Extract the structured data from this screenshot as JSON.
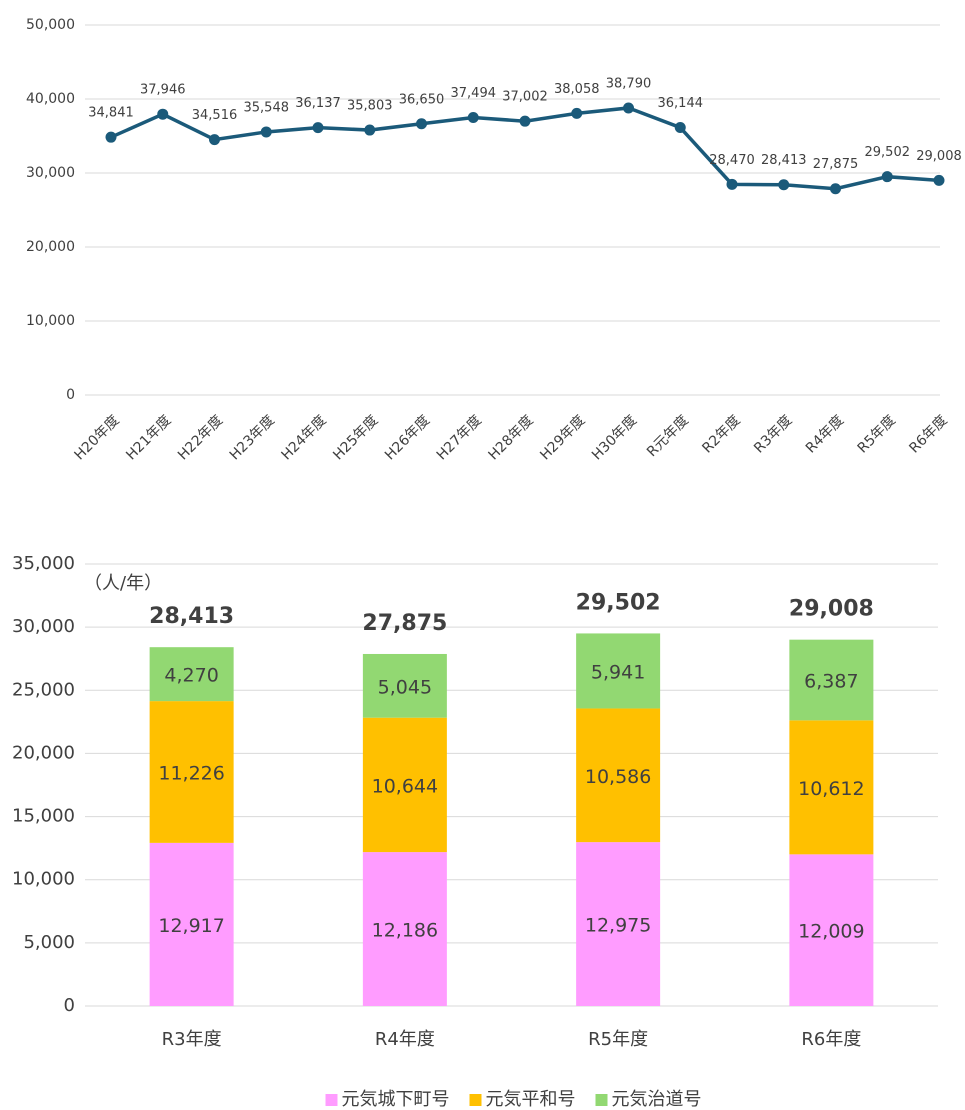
{
  "chart_data": [
    {
      "type": "line",
      "categories": [
        "H20年度",
        "H21年度",
        "H22年度",
        "H23年度",
        "H24年度",
        "H25年度",
        "H26年度",
        "H27年度",
        "H28年度",
        "H29年度",
        "H30年度",
        "R元年度",
        "R2年度",
        "R3年度",
        "R4年度",
        "R5年度",
        "R6年度"
      ],
      "series": [
        {
          "color": "#1b5a7a",
          "values": [
            34841,
            37946,
            34516,
            35548,
            36137,
            35803,
            36650,
            37494,
            37002,
            38058,
            38790,
            36144,
            28470,
            28413,
            27875,
            29502,
            29008
          ],
          "value_labels": [
            "34,841",
            "37,946",
            "34,516",
            "35,548",
            "36,137",
            "35,803",
            "36,650",
            "37,494",
            "37,002",
            "38,058",
            "38,790",
            "36,144",
            "28,470",
            "28,413",
            "27,875",
            "29,502",
            "29,008"
          ]
        }
      ],
      "ylim": [
        0,
        50000
      ],
      "yticks": [
        0,
        {
          "value": 10000,
          "label": "10,000"
        },
        {
          "value": 20000,
          "label": "20,000"
        },
        {
          "value": 30000,
          "label": "30,000"
        },
        {
          "value": 40000,
          "label": "40,000"
        },
        {
          "value": 50000,
          "label": "50,000"
        }
      ],
      "grid": true
    },
    {
      "type": "stacked_bar",
      "annotation": "（人/年）",
      "categories": [
        "R3年度",
        "R4年度",
        "R5年度",
        "R6年度"
      ],
      "series": [
        {
          "name": "元気城下町号",
          "color": "#ff9cff",
          "values": [
            12917,
            12186,
            12975,
            12009
          ],
          "value_labels": [
            "12,917",
            "12,186",
            "12,975",
            "12,009"
          ]
        },
        {
          "name": "元気平和号",
          "color": "#ffc000",
          "values": [
            11226,
            10644,
            10586,
            10612
          ],
          "value_labels": [
            "11,226",
            "10,644",
            "10,586",
            "10,612"
          ]
        },
        {
          "name": "元気治道号",
          "color": "#92d872",
          "values": [
            4270,
            5045,
            5941,
            6387
          ],
          "value_labels": [
            "4,270",
            "5,045",
            "5,941",
            "6,387"
          ]
        }
      ],
      "totals": [
        28413,
        27875,
        29502,
        29008
      ],
      "total_labels": [
        "28,413",
        "27,875",
        "29,502",
        "29,008"
      ],
      "ylim": [
        0,
        35000
      ],
      "yticks": [
        0,
        {
          "value": 5000,
          "label": "5,000"
        },
        {
          "value": 10000,
          "label": "10,000"
        },
        {
          "value": 15000,
          "label": "15,000"
        },
        {
          "value": 20000,
          "label": "20,000"
        },
        {
          "value": 25000,
          "label": "25,000"
        },
        {
          "value": 30000,
          "label": "30,000"
        },
        {
          "value": 35000,
          "label": "35,000"
        }
      ],
      "grid": true,
      "legend": "bottom"
    }
  ]
}
